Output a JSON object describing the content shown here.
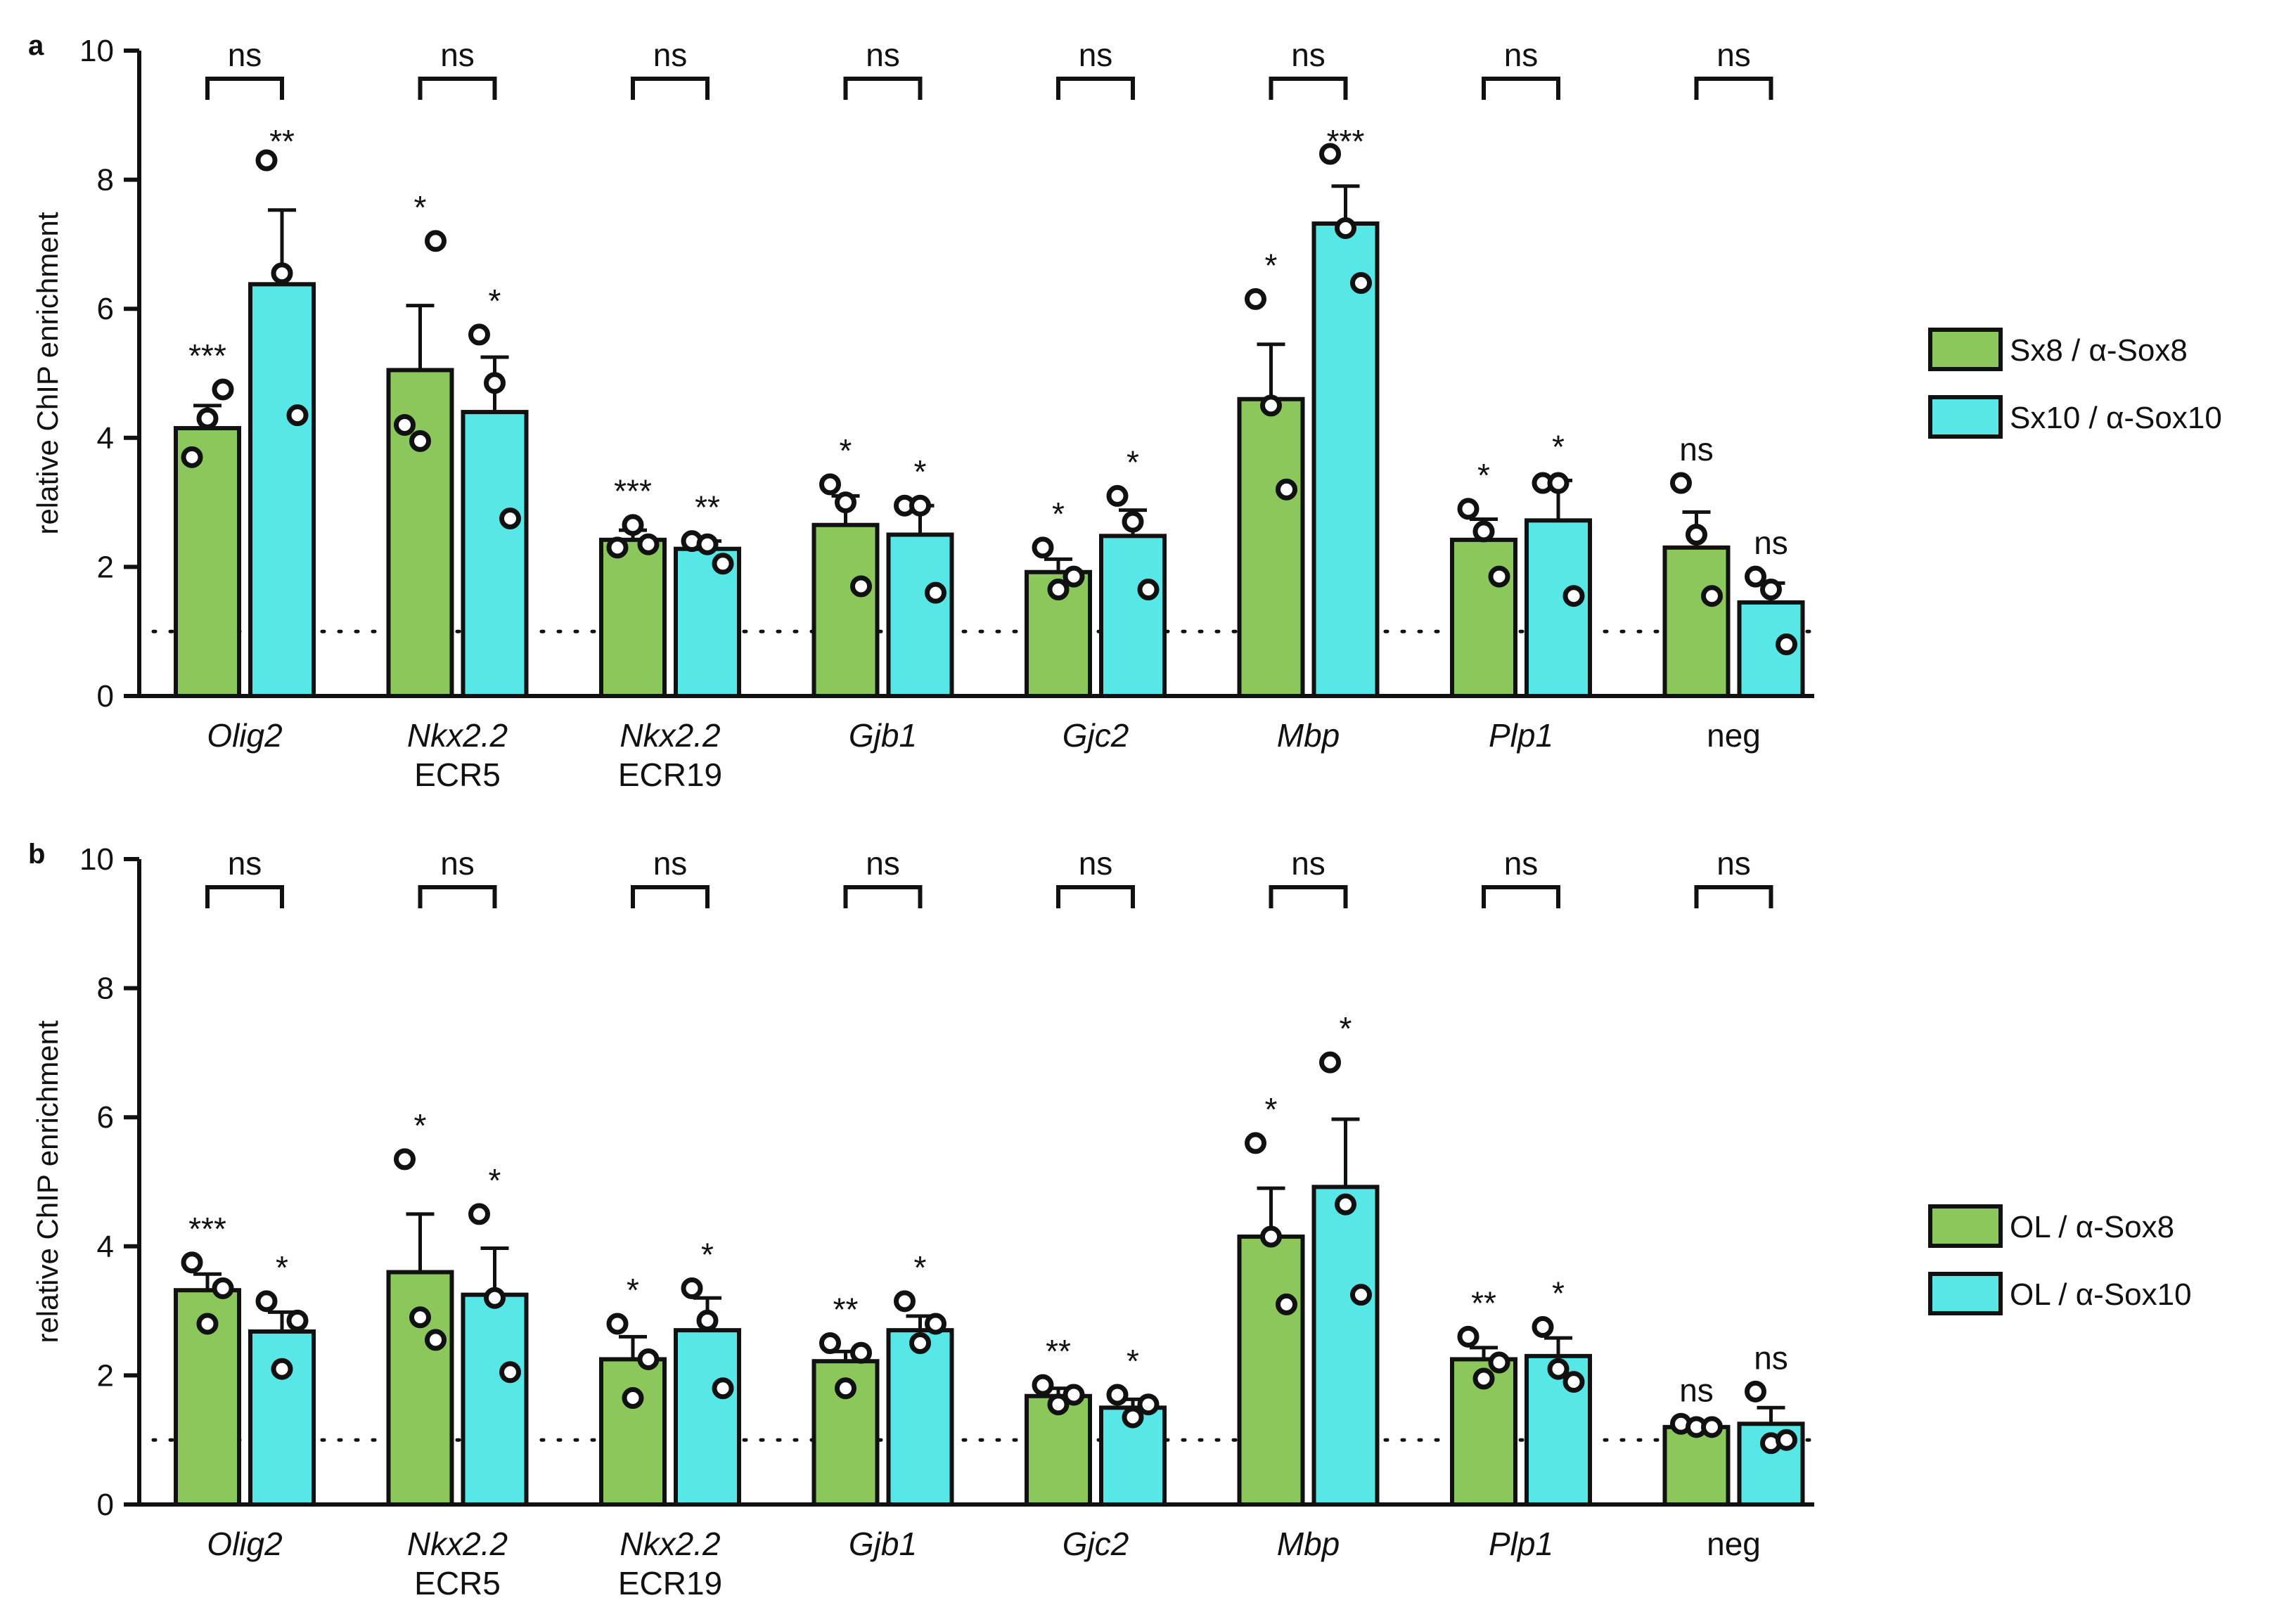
{
  "chart_data": [
    {
      "type": "bar",
      "panel": "a",
      "ylabel": "relative ChIP enrichment",
      "ylim": [
        0,
        10
      ],
      "yticks": [
        "0",
        "2",
        "4",
        "6",
        "8",
        "10"
      ],
      "reference_line": 1,
      "categories": [
        {
          "name": "Olig2",
          "italic": true,
          "sub": ""
        },
        {
          "name": "Nkx2.2",
          "italic": true,
          "sub": "ECR5"
        },
        {
          "name": "Nkx2.2",
          "italic": true,
          "sub": "ECR19"
        },
        {
          "name": "Gjb1",
          "italic": true,
          "sub": ""
        },
        {
          "name": "Gjc2",
          "italic": true,
          "sub": ""
        },
        {
          "name": "Mbp",
          "italic": true,
          "sub": ""
        },
        {
          "name": "Plp1",
          "italic": true,
          "sub": ""
        },
        {
          "name": "neg",
          "italic": false,
          "sub": ""
        }
      ],
      "series": [
        {
          "name": "Sx8 / α-Sox8",
          "color": "#8bc75a",
          "values": [
            4.15,
            5.05,
            2.42,
            2.65,
            1.92,
            4.6,
            2.42,
            2.3
          ],
          "errors": [
            0.35,
            1.0,
            0.15,
            0.45,
            0.2,
            0.85,
            0.32,
            0.55
          ],
          "points": [
            [
              3.7,
              4.3,
              4.75
            ],
            [
              4.2,
              3.95,
              7.05
            ],
            [
              2.3,
              2.65,
              2.35
            ],
            [
              3.28,
              3.0,
              1.7
            ],
            [
              2.3,
              1.65,
              1.85
            ],
            [
              6.15,
              4.5,
              3.2
            ],
            [
              2.9,
              2.55,
              1.85
            ],
            [
              3.3,
              2.5,
              1.55
            ]
          ],
          "sig": [
            "***",
            "*",
            "***",
            "*",
            "*",
            "*",
            "*",
            "ns"
          ]
        },
        {
          "name": "Sx10 / α-Sox10",
          "color": "#57e7e7",
          "values": [
            6.38,
            4.4,
            2.28,
            2.5,
            2.48,
            7.32,
            2.72,
            1.45
          ],
          "errors": [
            1.15,
            0.85,
            0.12,
            0.45,
            0.4,
            0.58,
            0.62,
            0.3
          ],
          "points": [
            [
              8.3,
              6.55,
              4.35
            ],
            [
              5.6,
              4.85,
              2.75
            ],
            [
              2.4,
              2.35,
              2.05
            ],
            [
              2.95,
              2.95,
              1.6
            ],
            [
              3.1,
              2.7,
              1.65
            ],
            [
              8.4,
              7.25,
              6.4
            ],
            [
              3.3,
              3.3,
              1.55
            ],
            [
              1.85,
              1.65,
              0.8
            ]
          ],
          "sig": [
            "**",
            "*",
            "**",
            "*",
            "*",
            "***",
            "*",
            "ns"
          ]
        }
      ],
      "comparison": [
        "ns",
        "ns",
        "ns",
        "ns",
        "ns",
        "ns",
        "ns",
        "ns"
      ]
    },
    {
      "type": "bar",
      "panel": "b",
      "ylabel": "relative ChIP enrichment",
      "ylim": [
        0,
        10
      ],
      "yticks": [
        "0",
        "2",
        "4",
        "6",
        "8",
        "10"
      ],
      "reference_line": 1,
      "categories": [
        {
          "name": "Olig2",
          "italic": true,
          "sub": ""
        },
        {
          "name": "Nkx2.2",
          "italic": true,
          "sub": "ECR5"
        },
        {
          "name": "Nkx2.2",
          "italic": true,
          "sub": "ECR19"
        },
        {
          "name": "Gjb1",
          "italic": true,
          "sub": ""
        },
        {
          "name": "Gjc2",
          "italic": true,
          "sub": ""
        },
        {
          "name": "Mbp",
          "italic": true,
          "sub": ""
        },
        {
          "name": "Plp1",
          "italic": true,
          "sub": ""
        },
        {
          "name": "neg",
          "italic": false,
          "sub": ""
        }
      ],
      "series": [
        {
          "name": "OL / α-Sox8",
          "color": "#8bc75a",
          "values": [
            3.32,
            3.6,
            2.25,
            2.22,
            1.68,
            4.15,
            2.25,
            1.2
          ],
          "errors": [
            0.25,
            0.9,
            0.35,
            0.15,
            0.12,
            0.75,
            0.18,
            0.05
          ],
          "points": [
            [
              3.75,
              2.8,
              3.35
            ],
            [
              5.35,
              2.9,
              2.55
            ],
            [
              2.8,
              1.65,
              2.25
            ],
            [
              2.5,
              1.8,
              2.35
            ],
            [
              1.85,
              1.55,
              1.7
            ],
            [
              5.6,
              4.15,
              3.1
            ],
            [
              2.6,
              1.95,
              2.2
            ],
            [
              1.25,
              1.2,
              1.2
            ]
          ],
          "sig": [
            "***",
            "*",
            "*",
            "**",
            "**",
            "*",
            "**",
            "ns"
          ]
        },
        {
          "name": "OL / α-Sox10",
          "color": "#57e7e7",
          "values": [
            2.68,
            3.25,
            2.7,
            2.7,
            1.5,
            4.92,
            2.3,
            1.25
          ],
          "errors": [
            0.3,
            0.72,
            0.5,
            0.22,
            0.13,
            1.05,
            0.28,
            0.25
          ],
          "points": [
            [
              3.15,
              2.1,
              2.85
            ],
            [
              4.5,
              3.2,
              2.05
            ],
            [
              3.35,
              2.85,
              1.8
            ],
            [
              3.15,
              2.5,
              2.8
            ],
            [
              1.7,
              1.35,
              1.55
            ],
            [
              6.85,
              4.65,
              3.25
            ],
            [
              2.75,
              2.1,
              1.9
            ],
            [
              1.75,
              0.95,
              1.0
            ]
          ],
          "sig": [
            "*",
            "*",
            "*",
            "*",
            "*",
            "*",
            "*",
            "ns"
          ]
        }
      ],
      "comparison": [
        "ns",
        "ns",
        "ns",
        "ns",
        "ns",
        "ns",
        "ns",
        "ns"
      ]
    }
  ]
}
